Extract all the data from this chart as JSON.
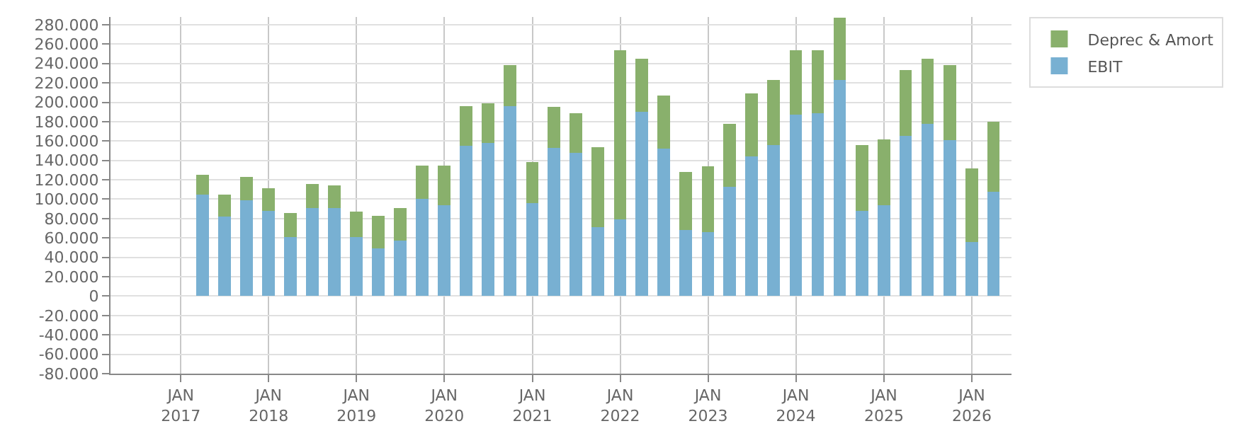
{
  "chart_data": {
    "type": "bar",
    "stacked": true,
    "x": [
      "2017-04",
      "2017-07",
      "2017-10",
      "2018-01",
      "2018-04",
      "2018-07",
      "2018-10",
      "2019-01",
      "2019-04",
      "2019-07",
      "2019-10",
      "2020-01",
      "2020-04",
      "2020-07",
      "2020-10",
      "2021-01",
      "2021-04",
      "2021-07",
      "2021-10",
      "2022-01",
      "2022-04",
      "2022-07",
      "2022-10",
      "2023-01",
      "2023-04",
      "2023-07",
      "2023-10",
      "2024-01",
      "2024-04",
      "2024-07",
      "2024-10",
      "2025-01",
      "2025-04",
      "2025-07",
      "2025-10",
      "2026-01",
      "2026-04"
    ],
    "series": [
      {
        "name": "EBIT",
        "color": "#78b0d2",
        "values": [
          105000,
          82000,
          99000,
          88000,
          61000,
          91000,
          91000,
          61000,
          49000,
          57000,
          100000,
          94000,
          155000,
          158000,
          196000,
          96000,
          153000,
          148000,
          71000,
          79000,
          190000,
          152000,
          68000,
          66000,
          113000,
          144000,
          156000,
          187000,
          189000,
          223000,
          88000,
          94000,
          165000,
          178000,
          161000,
          56000,
          108000
        ]
      },
      {
        "name": "Deprec & Amort",
        "color": "#89b06c",
        "values": [
          20000,
          23000,
          24000,
          23000,
          25000,
          25000,
          23000,
          26000,
          34000,
          34000,
          35000,
          41000,
          41000,
          41000,
          42000,
          42000,
          42000,
          41000,
          83000,
          175000,
          55000,
          55000,
          60000,
          68000,
          65000,
          65000,
          67000,
          67000,
          65000,
          64000,
          68000,
          68000,
          68000,
          67000,
          77000,
          76000,
          72000
        ]
      }
    ],
    "xlim": [
      "2016-03-15",
      "2026-06-15"
    ],
    "xticks": [
      {
        "value": "2017-01-01",
        "label": "JAN\n2017"
      },
      {
        "value": "2018-01-01",
        "label": "JAN\n2018"
      },
      {
        "value": "2019-01-01",
        "label": "JAN\n2019"
      },
      {
        "value": "2020-01-01",
        "label": "JAN\n2020"
      },
      {
        "value": "2021-01-01",
        "label": "JAN\n2021"
      },
      {
        "value": "2022-01-01",
        "label": "JAN\n2022"
      },
      {
        "value": "2023-01-01",
        "label": "JAN\n2023"
      },
      {
        "value": "2024-01-01",
        "label": "JAN\n2024"
      },
      {
        "value": "2025-01-01",
        "label": "JAN\n2025"
      },
      {
        "value": "2026-01-01",
        "label": "JAN\n2026"
      }
    ],
    "ylim": [
      -80000,
      288000
    ],
    "yticks": [
      {
        "value": -80000,
        "label": "-80.000"
      },
      {
        "value": -60000,
        "label": "-60.000"
      },
      {
        "value": -40000,
        "label": "-40.000"
      },
      {
        "value": -20000,
        "label": "-20.000"
      },
      0,
      {
        "value": 20000,
        "label": "20.000"
      },
      {
        "value": 40000,
        "label": "40.000"
      },
      {
        "value": 60000,
        "label": "60.000"
      },
      {
        "value": 80000,
        "label": "80.000"
      },
      {
        "value": 100000,
        "label": "100.000"
      },
      {
        "value": 120000,
        "label": "120.000"
      },
      {
        "value": 140000,
        "label": "140.000"
      },
      {
        "value": 160000,
        "label": "160.000"
      },
      {
        "value": 180000,
        "label": "180.000"
      },
      {
        "value": 200000,
        "label": "200.000"
      },
      {
        "value": 220000,
        "label": "220.000"
      },
      {
        "value": 240000,
        "label": "240.000"
      },
      {
        "value": 260000,
        "label": "260.000"
      },
      {
        "value": 280000,
        "label": "280.000"
      }
    ],
    "grid": true,
    "legend": "top right"
  }
}
